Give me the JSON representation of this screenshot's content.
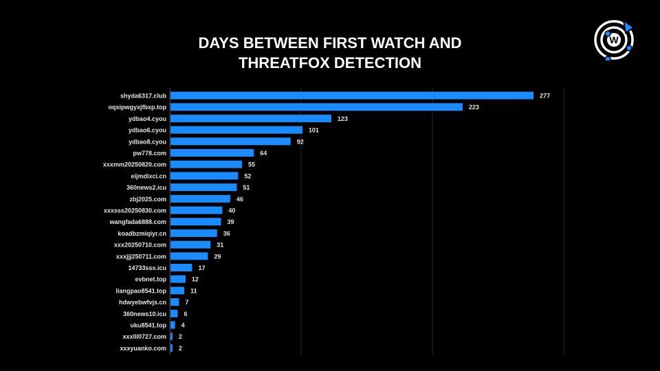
{
  "chart_data": {
    "type": "bar",
    "orientation": "horizontal",
    "title_line1": "DAYS BETWEEN FIRST WATCH AND",
    "title_line2": "THREATFOX DETECTION",
    "categories": [
      "shyda6317.club",
      "oqsipwgyxjfbxp.top",
      "ydbao4.cyou",
      "ydbao6.cyou",
      "ydbao8.cyou",
      "pw778.com",
      "xxxmm20250820.com",
      "eijmdixci.cn",
      "360news2.icu",
      "zbj2025.com",
      "xxxsss20250830.com",
      "wangfada6888.com",
      "koadbzmiqiyr.cn",
      "xxx20250710.com",
      "xxxjjj250711.com",
      "14733sss.icu",
      "evbnet.top",
      "liangpao8541.top",
      "hdwyebwfvjs.cn",
      "360news10.icu",
      "uku8541.top",
      "xxxlll0727.com",
      "xxxyuanko.com"
    ],
    "values": [
      277,
      223,
      123,
      101,
      92,
      64,
      55,
      52,
      51,
      46,
      40,
      39,
      36,
      31,
      29,
      17,
      12,
      11,
      7,
      6,
      4,
      2,
      2
    ],
    "xlim": [
      0,
      300
    ],
    "gridlines": [
      0,
      100,
      200,
      300
    ],
    "grid": true,
    "data_labels": true,
    "legend": "none",
    "bar_color": "#1a8cff",
    "background": "#000000"
  },
  "logo": {
    "name": "watch-logo",
    "letter": "W",
    "accent": "#1a8cff"
  }
}
